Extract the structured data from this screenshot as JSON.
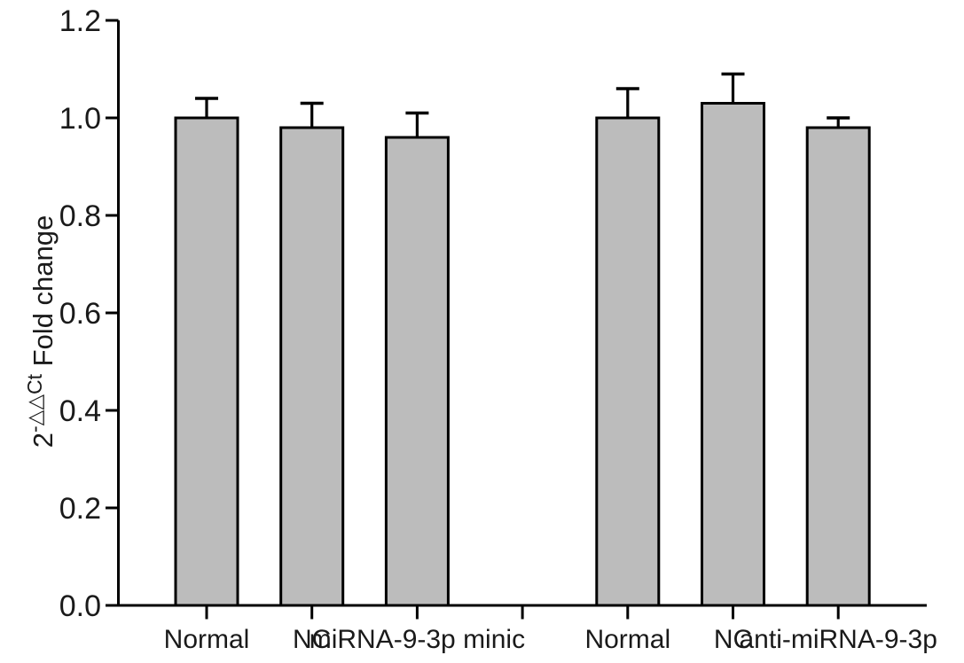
{
  "figure": {
    "kind": "scientific-bar-chart",
    "background_color": "#ffffff",
    "text_color": "#1a1a1a"
  },
  "chart_data": {
    "type": "bar",
    "title": "",
    "xlabel": "",
    "ylabel": "2^-△△Ct Fold change",
    "ylabel_parts": {
      "base": "2",
      "superscript": "-△△Ct",
      "rest": " Fold change"
    },
    "ylim": [
      0,
      1.2
    ],
    "yticks": [
      0.0,
      0.2,
      0.4,
      0.6,
      0.8,
      1.0,
      1.2
    ],
    "ytick_labels": [
      "0.0",
      "0.2",
      "0.4",
      "0.6",
      "0.8",
      "1.0",
      "1.2"
    ],
    "num_slots": 7,
    "empty_slots": [
      3
    ],
    "categories": [
      "Normal",
      "NC",
      "miRNA-9-3p minic",
      "Normal",
      "NC",
      "anti-miRNA-9-3p"
    ],
    "bars": [
      {
        "label": "Normal",
        "slot": 0,
        "value": 1.0,
        "error": 0.04
      },
      {
        "label": "NC",
        "slot": 1,
        "value": 0.98,
        "error": 0.05
      },
      {
        "label": "miRNA-9-3p minic",
        "slot": 2,
        "value": 0.96,
        "error": 0.05
      },
      {
        "label": "Normal",
        "slot": 4,
        "value": 1.0,
        "error": 0.06
      },
      {
        "label": "NC",
        "slot": 5,
        "value": 1.03,
        "error": 0.06
      },
      {
        "label": "anti-miRNA-9-3p",
        "slot": 6,
        "value": 0.98,
        "error": 0.02
      }
    ],
    "bar_color": "#bcbcbc",
    "bar_outline_color": "#000000",
    "axis_color": "#000000",
    "error_bar_color": "#000000",
    "error_direction": "up",
    "grid": false,
    "legend": false
  }
}
